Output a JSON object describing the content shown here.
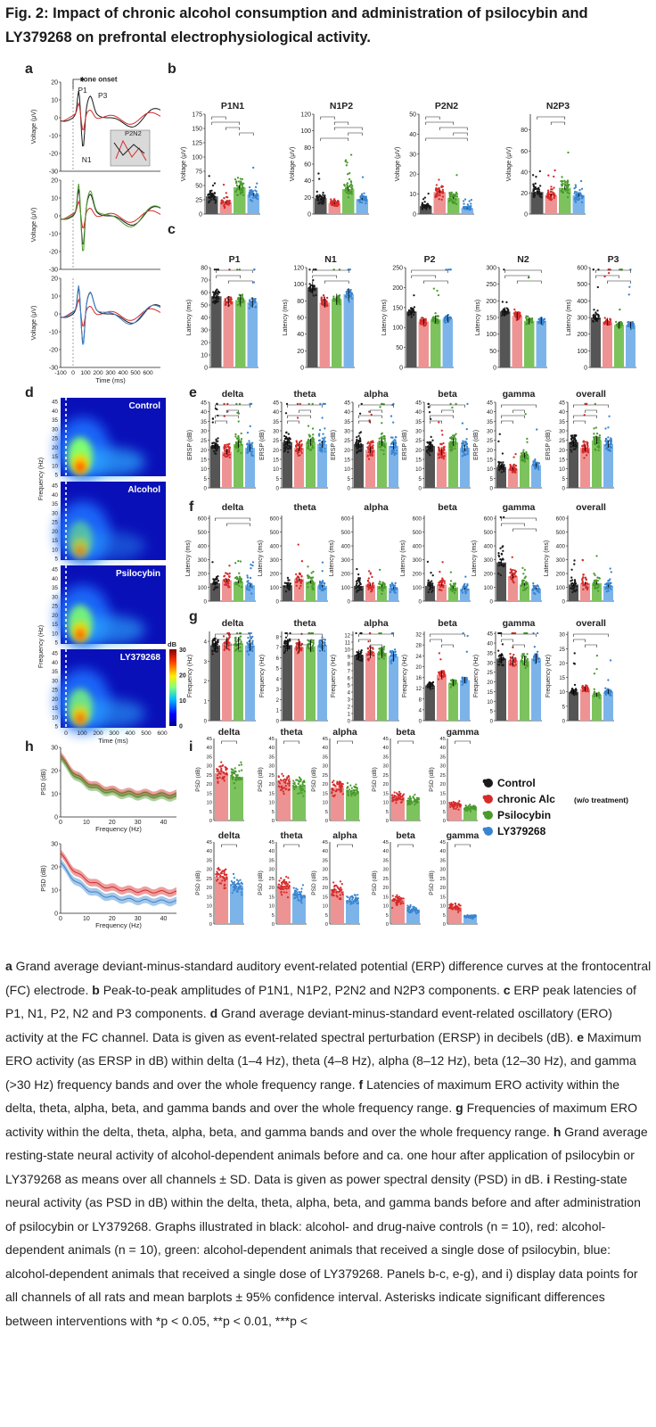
{
  "title": "Fig. 2: Impact of chronic alcohol consumption and administration of psilocybin and LY379268 on prefrontal electrophysiological activity.",
  "colors": {
    "control": "#1a1a1a",
    "alcohol": "#d62b2b",
    "psilocybin": "#4a9a2e",
    "ly": "#3a84cf",
    "control_bar": "#555555",
    "alcohol_bar": "#ee9393",
    "psilocybin_bar": "#7cc35e",
    "ly_bar": "#7cb4ea"
  },
  "panel_a": {
    "letter": "a",
    "annotations": {
      "onset": "tone onset",
      "p1": "P1",
      "n1": "N1",
      "p3": "P3",
      "p2n2": "P2N2"
    },
    "ylabel": "Voltage (μV)",
    "xlabel": "Time (ms)",
    "yticks": [
      "20",
      "10",
      "0",
      "-10",
      "-20",
      "-30"
    ],
    "xticks": [
      "-100",
      "0",
      "100",
      "200",
      "300",
      "400",
      "500",
      "600"
    ]
  },
  "panel_b": {
    "letter": "b",
    "ylabel": "Voltage (μV)",
    "charts": [
      {
        "title": "P1N1",
        "yticks": [
          "0",
          "25",
          "50",
          "75",
          "100",
          "125",
          "150",
          "175"
        ],
        "means": [
          31,
          21,
          47,
          34
        ],
        "ymax": 175
      },
      {
        "title": "N1P2",
        "yticks": [
          "0",
          "20",
          "40",
          "60",
          "80",
          "100",
          "120"
        ],
        "means": [
          19,
          13,
          30,
          18
        ],
        "ymax": 120
      },
      {
        "title": "P2N2",
        "yticks": [
          "0",
          "10",
          "20",
          "30",
          "40",
          "50"
        ],
        "means": [
          4,
          11,
          8,
          3
        ],
        "ymax": 50
      },
      {
        "title": "N2P3",
        "yticks": [
          "0",
          "20",
          "40",
          "60",
          "80"
        ],
        "means": [
          21,
          18,
          25,
          18
        ],
        "ymax": 95
      }
    ]
  },
  "panel_c": {
    "letter": "c",
    "ylabel": "Latency (ms)",
    "charts": [
      {
        "title": "P1",
        "yticks": [
          "0",
          "10",
          "20",
          "30",
          "40",
          "50",
          "60",
          "70",
          "80"
        ],
        "means": [
          57,
          53,
          54,
          52
        ],
        "ymax": 80
      },
      {
        "title": "N1",
        "yticks": [
          "0",
          "20",
          "40",
          "60",
          "80",
          "100",
          "120"
        ],
        "means": [
          96,
          78,
          82,
          88
        ],
        "ymax": 120
      },
      {
        "title": "P2",
        "yticks": [
          "0",
          "50",
          "100",
          "150",
          "200",
          "250"
        ],
        "means": [
          140,
          115,
          120,
          122
        ],
        "ymax": 250
      },
      {
        "title": "N2",
        "yticks": [
          "0",
          "50",
          "100",
          "150",
          "200",
          "250",
          "300"
        ],
        "means": [
          168,
          155,
          140,
          140
        ],
        "ymax": 300
      },
      {
        "title": "P3",
        "yticks": [
          "0",
          "100",
          "200",
          "300",
          "400",
          "500",
          "600"
        ],
        "means": [
          300,
          275,
          255,
          255
        ],
        "ymax": 600
      }
    ]
  },
  "panel_d": {
    "letter": "d",
    "ylabel": "Frequency (Hz)",
    "xlabel": "Time (ms)",
    "yticks": [
      "45",
      "40",
      "35",
      "30",
      "25",
      "20",
      "15",
      "10",
      "5"
    ],
    "xticks": [
      "0",
      "100",
      "200",
      "300",
      "400",
      "500",
      "600"
    ],
    "maps": [
      "Control",
      "Alcohol",
      "Psilocybin",
      "LY379268"
    ],
    "colorbar": {
      "unit": "dB",
      "ticks": [
        "30",
        "20",
        "10",
        "0"
      ]
    }
  },
  "panel_e": {
    "letter": "e",
    "ylabel": "ERSP (dB)",
    "yticks": [
      "0",
      "5",
      "10",
      "15",
      "20",
      "25",
      "30",
      "35",
      "40",
      "45"
    ],
    "charts": [
      {
        "title": "delta",
        "means": [
          22,
          19,
          23,
          21
        ]
      },
      {
        "title": "theta",
        "means": [
          24,
          21,
          24,
          23
        ]
      },
      {
        "title": "alpha",
        "means": [
          23,
          20,
          24,
          22
        ]
      },
      {
        "title": "beta",
        "means": [
          22,
          19,
          24,
          21
        ]
      },
      {
        "title": "gamma",
        "means": [
          11,
          10,
          17,
          12
        ]
      },
      {
        "title": "overall",
        "means": [
          24,
          21,
          25,
          23
        ]
      }
    ]
  },
  "panel_f": {
    "letter": "f",
    "ylabel": "Latency (ms)",
    "yticks": [
      "0",
      "100",
      "200",
      "300",
      "400",
      "500",
      "600"
    ],
    "charts": [
      {
        "title": "delta",
        "means": [
          130,
          150,
          140,
          115
        ]
      },
      {
        "title": "theta",
        "means": [
          115,
          160,
          140,
          110
        ]
      },
      {
        "title": "alpha",
        "means": [
          110,
          120,
          110,
          95
        ]
      },
      {
        "title": "beta",
        "means": [
          110,
          120,
          100,
          90
        ]
      },
      {
        "title": "gamma",
        "means": [
          280,
          180,
          120,
          90
        ]
      },
      {
        "title": "overall",
        "means": [
          120,
          130,
          130,
          110
        ]
      }
    ]
  },
  "panel_g": {
    "letter": "g",
    "ylabel": "Frequency (Hz)",
    "charts": [
      {
        "title": "delta",
        "yticks": [
          "0",
          "1",
          "2",
          "3",
          "4"
        ],
        "means": [
          3.8,
          3.9,
          3.9,
          3.8
        ],
        "ymax": 4.5
      },
      {
        "title": "theta",
        "yticks": [
          "0",
          "1",
          "2",
          "3",
          "4",
          "5",
          "6",
          "7",
          "8"
        ],
        "means": [
          7.2,
          7.0,
          7.1,
          7.2
        ],
        "ymax": 8.5
      },
      {
        "title": "alpha",
        "yticks": [
          "0",
          "1",
          "2",
          "3",
          "4",
          "5",
          "6",
          "7",
          "8",
          "9",
          "10",
          "11",
          "12"
        ],
        "means": [
          9.2,
          9.5,
          9.5,
          9.0
        ],
        "ymax": 12.5
      },
      {
        "title": "beta",
        "yticks": [
          "0",
          "4",
          "8",
          "12",
          "16",
          "20",
          "24",
          "28",
          "32"
        ],
        "means": [
          13,
          17,
          14,
          15
        ],
        "ymax": 33
      },
      {
        "title": "gamma",
        "yticks": [
          "0",
          "5",
          "10",
          "15",
          "20",
          "25",
          "30",
          "35",
          "40",
          "45"
        ],
        "means": [
          32,
          31,
          31,
          32
        ],
        "ymax": 46
      },
      {
        "title": "overall",
        "yticks": [
          "0",
          "5",
          "10",
          "15",
          "20",
          "25",
          "30"
        ],
        "means": [
          10,
          11,
          9,
          10
        ],
        "ymax": 31
      }
    ]
  },
  "panel_h": {
    "letter": "h",
    "ylabel": "PSD (dB)",
    "xlabel": "Frequency (Hz)",
    "yticks": [
      "30",
      "20",
      "10",
      "0"
    ],
    "xticks": [
      "0",
      "10",
      "20",
      "30",
      "40"
    ]
  },
  "panel_i": {
    "letter": "i",
    "ylabel": "PSD (dB)",
    "yticks": [
      "0",
      "5",
      "10",
      "15",
      "20",
      "25",
      "30",
      "35",
      "40",
      "45"
    ],
    "charts": [
      "delta",
      "theta",
      "alpha",
      "beta",
      "gamma"
    ]
  },
  "legend": [
    {
      "label": "Control",
      "note": ""
    },
    {
      "label": "chronic Alc",
      "note": "(w/o treatment)"
    },
    {
      "label": "Psilocybin",
      "note": ""
    },
    {
      "label": "LY379268",
      "note": ""
    }
  ],
  "caption": [
    {
      "bold": "a",
      "text": " Grand average deviant-minus-standard auditory event-related potential (ERP) difference curves at the frontocentral (FC) electrode. "
    },
    {
      "bold": "b",
      "text": " Peak-to-peak amplitudes of P1N1, N1P2, P2N2 and N2P3 components. "
    },
    {
      "bold": "c",
      "text": " ERP peak latencies of P1, N1, P2, N2 and P3 components. "
    },
    {
      "bold": "d",
      "text": " Grand average deviant-minus-standard event-related oscillatory (ERO) activity at the FC channel. Data is given as event-related spectral perturbation (ERSP) in decibels (dB). "
    },
    {
      "bold": "e",
      "text": " Maximum ERO activity (as ERSP in dB) within delta (1–4 Hz), theta (4–8 Hz), alpha (8–12 Hz), beta (12–30 Hz), and gamma (>30 Hz) frequency bands and over the whole frequency range. "
    },
    {
      "bold": "f",
      "text": " Latencies of maximum ERO activity within the delta, theta, alpha, beta, and gamma bands and over the whole frequency range. "
    },
    {
      "bold": "g",
      "text": " Frequencies of maximum ERO activity within the delta, theta, alpha, beta, and gamma bands and over the whole frequency range. "
    },
    {
      "bold": "h",
      "text": " Grand average resting-state neural activity of alcohol-dependent animals before and ca. one hour after application of psilocybin or LY379268 as means over all channels ± SD. Data is given as power spectral density (PSD) in dB. "
    },
    {
      "bold": "i",
      "text": " Resting-state neural activity (as PSD in dB) within the delta, theta, alpha, beta, and gamma bands before and after administration of psilocybin or LY379268. Graphs illustrated in black: alcohol- and drug-naive controls (n = 10), red: alcohol-dependent animals (n = 10), green: alcohol-dependent animals that received a single dose of psilocybin, blue: alcohol-dependent animals that received a single dose of LY379268. Panels b-c, e-g), and i) display data points for all channels of all rats and mean barplots ± 95% confidence interval. Asterisks indicate significant differences between interventions with *p < 0.05, **p < 0.01, ***p <"
    }
  ]
}
